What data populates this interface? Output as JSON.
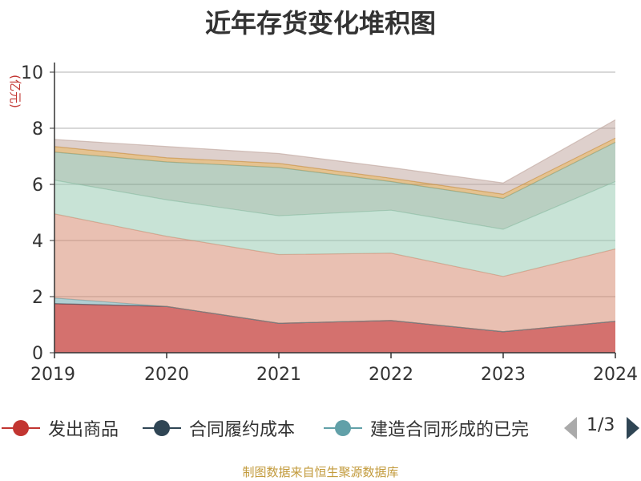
{
  "chart_data": {
    "type": "area",
    "stacked": true,
    "title": "近年存货变化堆积图",
    "ylabel": "(亿元)",
    "xlabel": "",
    "x": [
      "2019",
      "2020",
      "2021",
      "2022",
      "2023",
      "2024"
    ],
    "ylim": [
      0,
      10
    ],
    "yticks": [
      "0",
      "2",
      "4",
      "6",
      "8",
      "10"
    ],
    "grid": true,
    "series": [
      {
        "name": "发出商品",
        "color": "#c23531",
        "values": [
          1.75,
          1.65,
          1.05,
          1.15,
          0.75,
          1.12
        ]
      },
      {
        "name": "合同履约成本",
        "color": "#2f4554",
        "values": [
          0.0,
          0.0,
          0.0,
          0.0,
          0.0,
          0.0
        ]
      },
      {
        "name": "建造合同形成的已完工未结算资产",
        "color": "#61a0a8",
        "values": [
          0.2,
          0.0,
          0.0,
          0.0,
          0.0,
          0.0
        ]
      },
      {
        "name": "",
        "color": "#d48265",
        "values": [
          3.0,
          2.5,
          2.45,
          2.4,
          1.97,
          2.58
        ]
      },
      {
        "name": "",
        "color": "#91c7ae",
        "values": [
          1.2,
          1.3,
          1.38,
          1.53,
          1.68,
          2.4
        ]
      },
      {
        "name": "",
        "color": "#749f83",
        "values": [
          1.0,
          1.35,
          1.72,
          1.02,
          1.1,
          1.4
        ]
      },
      {
        "name": "",
        "color": "#ca8622",
        "values": [
          0.2,
          0.15,
          0.15,
          0.12,
          0.15,
          0.15
        ]
      },
      {
        "name": "",
        "color": "#bda29a",
        "values": [
          0.25,
          0.4,
          0.35,
          0.38,
          0.4,
          0.65
        ]
      }
    ]
  },
  "legend": {
    "items": [
      {
        "label": "发出商品",
        "color": "#c23531"
      },
      {
        "label": "合同履约成本",
        "color": "#2f4554"
      },
      {
        "label": "建造合同形成的已完",
        "color": "#61a0a8"
      }
    ],
    "page_text": "1/3"
  },
  "footer": {
    "source": "制图数据来自恒生聚源数据库"
  }
}
